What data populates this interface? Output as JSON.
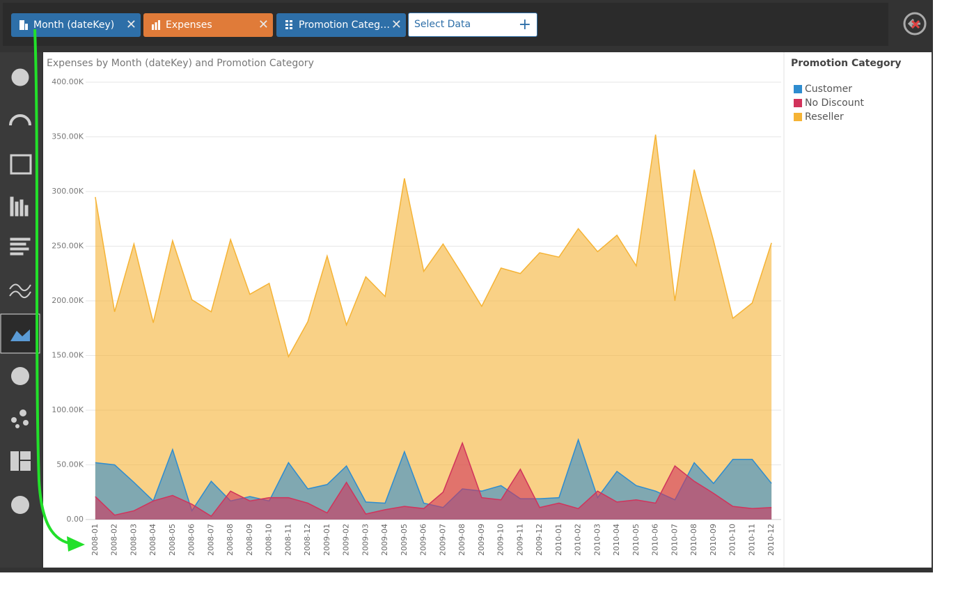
{
  "toolbar": {
    "chips": [
      "Month (dateKey)",
      "Expenses",
      "Promotion Categ…"
    ],
    "select_data": "Select Data"
  },
  "chart_data": {
    "type": "area",
    "title": "Expenses by Month (dateKey) and Promotion Category",
    "legend_title": "Promotion Category",
    "categories": [
      "2008-01",
      "2008-02",
      "2008-03",
      "2008-04",
      "2008-05",
      "2008-06",
      "2008-07",
      "2008-08",
      "2008-09",
      "2008-10",
      "2008-11",
      "2008-12",
      "2009-01",
      "2009-02",
      "2009-03",
      "2009-04",
      "2009-05",
      "2009-06",
      "2009-07",
      "2009-08",
      "2009-09",
      "2009-10",
      "2009-11",
      "2009-12",
      "2010-01",
      "2010-02",
      "2010-03",
      "2010-04",
      "2010-05",
      "2010-06",
      "2010-07",
      "2010-08",
      "2010-09",
      "2010-10",
      "2010-11",
      "2010-12"
    ],
    "series": [
      {
        "name": "Customer",
        "color": "#2e8ccf",
        "values": [
          52000,
          50000,
          34000,
          17000,
          64000,
          8000,
          35000,
          17000,
          21000,
          17000,
          52000,
          28000,
          32000,
          49000,
          16000,
          15000,
          62000,
          15000,
          11000,
          28000,
          26000,
          31000,
          19000,
          19000,
          20000,
          73000,
          20000,
          44000,
          31000,
          26000,
          18000,
          52000,
          33000,
          55000,
          55000,
          33000
        ]
      },
      {
        "name": "No Discount",
        "color": "#d1335b",
        "values": [
          21000,
          4000,
          8000,
          17000,
          22000,
          14000,
          3000,
          26000,
          17000,
          20000,
          20000,
          15000,
          6000,
          34000,
          5000,
          9000,
          12000,
          10000,
          25000,
          70000,
          20000,
          18000,
          46000,
          11000,
          15000,
          10000,
          26000,
          16000,
          18000,
          15000,
          49000,
          35000,
          24000,
          12000,
          10000,
          11000
        ]
      },
      {
        "name": "Reseller",
        "color": "#f5b335",
        "values": [
          295000,
          190000,
          252000,
          180000,
          255000,
          201000,
          190000,
          256000,
          206000,
          216000,
          149000,
          181000,
          241000,
          178000,
          222000,
          204000,
          312000,
          227000,
          252000,
          224000,
          195000,
          230000,
          225000,
          244000,
          240000,
          266000,
          245000,
          260000,
          232000,
          352000,
          200000,
          320000,
          255000,
          184000,
          198000,
          253000
        ]
      }
    ],
    "ylim": [
      0,
      400000
    ],
    "yticks": [
      {
        "value": 0,
        "label": "0.00"
      },
      {
        "value": 50000,
        "label": "50.00K"
      },
      {
        "value": 100000,
        "label": "100.00K"
      },
      {
        "value": 150000,
        "label": "150.00K"
      },
      {
        "value": 200000,
        "label": "200.00K"
      },
      {
        "value": 250000,
        "label": "250.00K"
      },
      {
        "value": 300000,
        "label": "300.00K"
      },
      {
        "value": 350000,
        "label": "350.00K"
      },
      {
        "value": 400000,
        "label": "400.00K"
      }
    ],
    "grid": true
  }
}
